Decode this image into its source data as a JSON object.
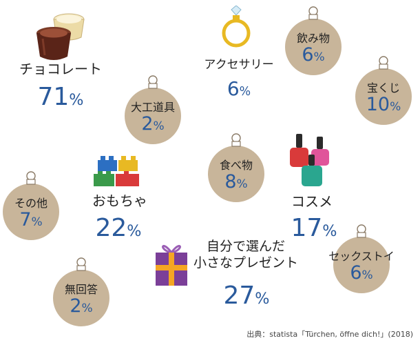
{
  "chart_data": {
    "type": "table",
    "items": [
      {
        "label": "チョコレート",
        "value": 71,
        "percent": "71%",
        "style": "icon",
        "icon": "chocolate-icon"
      },
      {
        "label": "アクセサリー",
        "value": 6,
        "percent": "6%",
        "style": "icon",
        "icon": "ring-icon"
      },
      {
        "label": "飲み物",
        "value": 6,
        "percent": "6%",
        "style": "ornament"
      },
      {
        "label": "宝くじ",
        "value": 10,
        "percent": "10%",
        "style": "ornament"
      },
      {
        "label": "大工道具",
        "value": 2,
        "percent": "2%",
        "style": "ornament"
      },
      {
        "label": "食べ物",
        "value": 8,
        "percent": "8%",
        "style": "ornament"
      },
      {
        "label": "コスメ",
        "value": 17,
        "percent": "17%",
        "style": "icon",
        "icon": "nail-polish-icon"
      },
      {
        "label": "おもちゃ",
        "value": 22,
        "percent": "22%",
        "style": "icon",
        "icon": "toy-blocks-icon"
      },
      {
        "label": "その他",
        "value": 7,
        "percent": "7%",
        "style": "ornament"
      },
      {
        "label": "自分で選んだ\n小さなプレゼント",
        "value": 27,
        "percent": "27%",
        "style": "icon",
        "icon": "gift-icon"
      },
      {
        "label": "セックストイ",
        "value": 6,
        "percent": "6%",
        "style": "ornament"
      },
      {
        "label": "無回答",
        "value": 2,
        "percent": "2%",
        "style": "ornament"
      }
    ],
    "source": "出典：statista「Türchen, öffne dich!」(2018)"
  },
  "colors": {
    "ornament_fill": "#c8b59a",
    "ornament_cap": "#ffffff",
    "label_text": "#222222",
    "percent_text": "#2a5a9c"
  }
}
